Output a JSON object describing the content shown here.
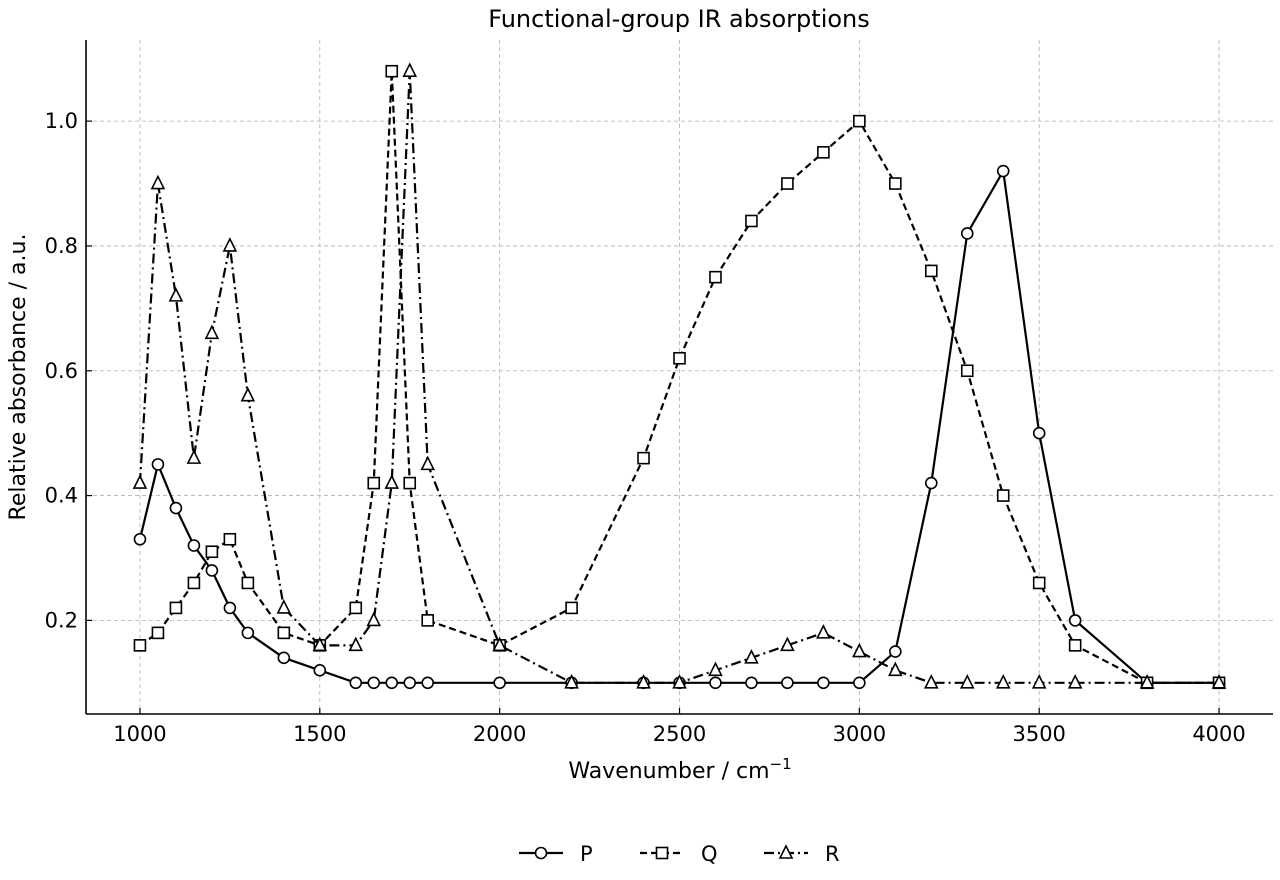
{
  "chart_data": {
    "type": "line",
    "title": "Functional-group IR absorptions",
    "xlabel": "Wavenumber / cm",
    "xlabel_sup": "−1",
    "ylabel": "Relative absorbance / a.u.",
    "xlim": [
      850,
      4150
    ],
    "ylim": [
      0.05,
      1.13
    ],
    "xticks": [
      1000,
      1500,
      2000,
      2500,
      3000,
      3500,
      4000
    ],
    "yticks": [
      0.2,
      0.4,
      0.6,
      0.8,
      1.0
    ],
    "xtick_labels": [
      "1000",
      "1500",
      "2000",
      "2500",
      "3000",
      "3500",
      "4000"
    ],
    "ytick_labels": [
      "0.2",
      "0.4",
      "0.6",
      "0.8",
      "1.0"
    ],
    "grid": true,
    "legend_position": "bottom-center",
    "series": [
      {
        "name": "P",
        "marker": "circle",
        "dash": "solid",
        "x": [
          1000,
          1050,
          1100,
          1150,
          1200,
          1250,
          1300,
          1400,
          1500,
          1600,
          1650,
          1700,
          1750,
          1800,
          2000,
          2200,
          2400,
          2500,
          2600,
          2700,
          2800,
          2900,
          3000,
          3100,
          3200,
          3300,
          3400,
          3500,
          3600,
          3800,
          4000
        ],
        "y": [
          0.33,
          0.45,
          0.38,
          0.32,
          0.28,
          0.22,
          0.18,
          0.14,
          0.12,
          0.1,
          0.1,
          0.1,
          0.1,
          0.1,
          0.1,
          0.1,
          0.1,
          0.1,
          0.1,
          0.1,
          0.1,
          0.1,
          0.1,
          0.15,
          0.42,
          0.82,
          0.92,
          0.5,
          0.2,
          0.1,
          0.1
        ]
      },
      {
        "name": "Q",
        "marker": "square",
        "dash": "dashed",
        "x": [
          1000,
          1050,
          1100,
          1150,
          1200,
          1250,
          1300,
          1400,
          1500,
          1600,
          1650,
          1700,
          1750,
          1800,
          2000,
          2200,
          2400,
          2500,
          2600,
          2700,
          2800,
          2900,
          3000,
          3100,
          3200,
          3300,
          3400,
          3500,
          3600,
          3800,
          4000
        ],
        "y": [
          0.16,
          0.18,
          0.22,
          0.26,
          0.31,
          0.33,
          0.26,
          0.18,
          0.16,
          0.22,
          0.42,
          1.08,
          0.42,
          0.2,
          0.16,
          0.22,
          0.46,
          0.62,
          0.75,
          0.84,
          0.9,
          0.95,
          1.0,
          0.9,
          0.76,
          0.6,
          0.4,
          0.26,
          0.16,
          0.1,
          0.1
        ]
      },
      {
        "name": "R",
        "marker": "triangle",
        "dash": "dashdot",
        "x": [
          1000,
          1050,
          1100,
          1150,
          1200,
          1250,
          1300,
          1400,
          1500,
          1600,
          1650,
          1700,
          1750,
          1800,
          2000,
          2200,
          2400,
          2500,
          2600,
          2700,
          2800,
          2900,
          3000,
          3100,
          3200,
          3300,
          3400,
          3500,
          3600,
          3800,
          4000
        ],
        "y": [
          0.42,
          0.9,
          0.72,
          0.46,
          0.66,
          0.8,
          0.56,
          0.22,
          0.16,
          0.16,
          0.2,
          0.42,
          1.08,
          0.45,
          0.16,
          0.1,
          0.1,
          0.1,
          0.12,
          0.14,
          0.16,
          0.18,
          0.15,
          0.12,
          0.1,
          0.1,
          0.1,
          0.1,
          0.1,
          0.1,
          0.1
        ]
      }
    ]
  }
}
